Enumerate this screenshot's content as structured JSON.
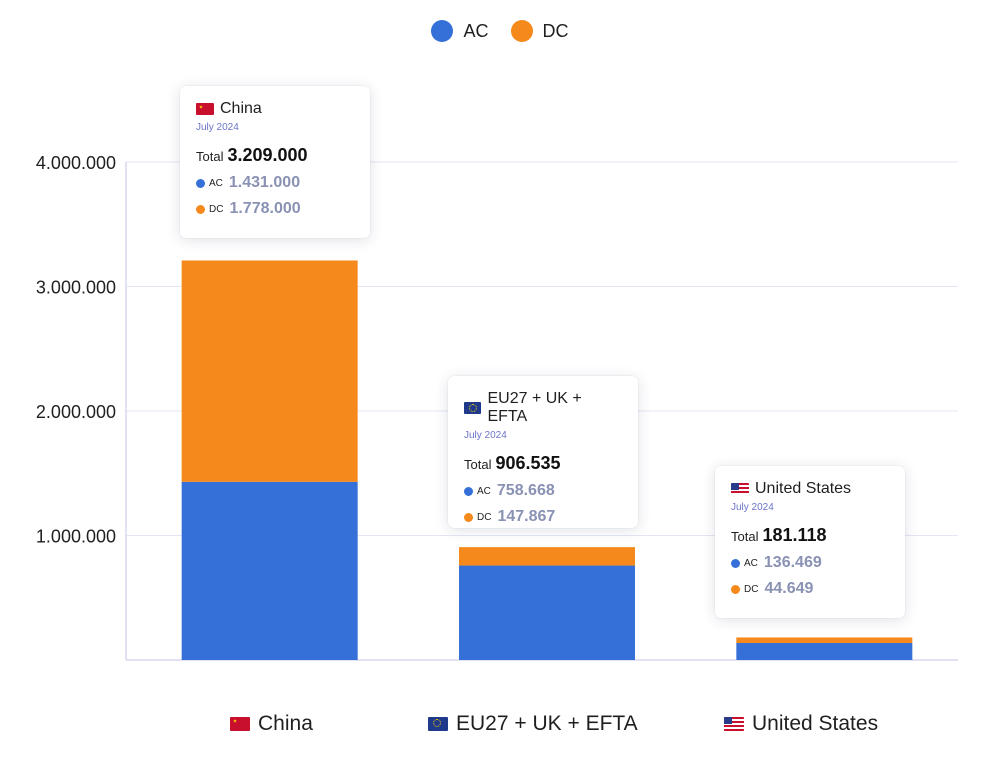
{
  "colors": {
    "ac": "#3570d8",
    "dc": "#f5891c",
    "grid": "#e4e6f5",
    "axis": "#d7daf0"
  },
  "legend": [
    {
      "label": "AC",
      "color": "#3570d8"
    },
    {
      "label": "DC",
      "color": "#f5891c"
    }
  ],
  "chart_data": {
    "type": "bar",
    "stacked": true,
    "title": "",
    "xlabel": "",
    "ylabel": "",
    "ylim": [
      0,
      4000000
    ],
    "yticks": [
      1000000,
      2000000,
      3000000,
      4000000
    ],
    "ytick_labels": [
      "1.000.000",
      "2.000.000",
      "3.000.000",
      "4.000.000"
    ],
    "grid": true,
    "legend_position": "top-center",
    "categories": [
      "China",
      "EU27 + UK + EFTA",
      "United States"
    ],
    "category_icons": [
      "flag-china-icon",
      "flag-eu-icon",
      "flag-us-icon"
    ],
    "series": [
      {
        "name": "AC",
        "values": [
          1431000,
          758668,
          136469
        ]
      },
      {
        "name": "DC",
        "values": [
          1778000,
          147867,
          44649
        ]
      }
    ]
  },
  "tooltips": [
    {
      "country": "China",
      "date": "July 2024",
      "total_label": "Total",
      "total": "3.209.000",
      "ac_label": "AC",
      "ac": "1.431.000",
      "dc_label": "DC",
      "dc": "1.778.000"
    },
    {
      "country": "EU27 + UK + EFTA",
      "date": "July 2024",
      "total_label": "Total",
      "total": "906.535",
      "ac_label": "AC",
      "ac": "758.668",
      "dc_label": "DC",
      "dc": "147.867"
    },
    {
      "country": "United States",
      "date": "July 2024",
      "total_label": "Total",
      "total": "181.118",
      "ac_label": "AC",
      "ac": "136.469",
      "dc_label": "DC",
      "dc": "44.649"
    }
  ]
}
